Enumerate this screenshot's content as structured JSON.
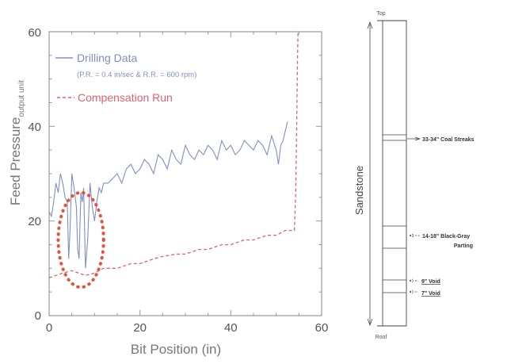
{
  "chart_data": [
    {
      "type": "line",
      "xlabel": "Bit Position (in)",
      "ylabel": "Feed Pressure",
      "ylabel_subscript": "output unit",
      "xlim": [
        0,
        60
      ],
      "ylim": [
        0,
        60
      ],
      "x_ticks": [
        "0",
        "20",
        "40",
        "60"
      ],
      "y_ticks": [
        "0",
        "20",
        "40",
        "60"
      ],
      "grid": false,
      "legend_position": "top-left",
      "series": [
        {
          "name": "Drilling Data",
          "legend_sublabel": "(P.R. = 0.4 in/sec & R.R. = 600 rpm)",
          "color": "#8090c4",
          "x": [
            0,
            0.5,
            1,
            1.5,
            2,
            2.5,
            3,
            3.5,
            4,
            4.3,
            4.6,
            5,
            5.5,
            6,
            6.3,
            6.6,
            7,
            7.3,
            7.6,
            8,
            8.5,
            9,
            9.5,
            10,
            10.5,
            11,
            11.5,
            12,
            13,
            14,
            15,
            16,
            17,
            18,
            19,
            20,
            21,
            22,
            23,
            24,
            25,
            26,
            27,
            28,
            29,
            30,
            31,
            32,
            33,
            34,
            35,
            36,
            37,
            38,
            39,
            40,
            41,
            42,
            43,
            44,
            45,
            46,
            47,
            48,
            49,
            50,
            50.5,
            51,
            51.5,
            52,
            52.5
          ],
          "y": [
            22,
            21,
            24,
            28,
            26,
            30,
            28,
            25,
            24,
            12,
            18,
            30,
            27,
            23,
            14,
            12,
            26,
            24,
            27,
            10,
            16,
            28,
            23,
            20,
            24,
            27,
            26,
            28,
            28,
            29,
            30,
            28,
            31,
            32,
            30,
            31,
            33,
            32,
            30,
            34,
            33,
            31,
            35,
            33,
            32,
            36,
            34,
            33,
            35,
            34,
            36,
            35,
            33,
            37,
            35,
            36,
            34,
            35,
            37,
            36,
            35,
            37,
            36,
            34,
            38,
            35,
            32,
            36,
            37,
            39,
            41
          ]
        },
        {
          "name": "Compensation Run",
          "color": "#e06070",
          "x": [
            0,
            3,
            5,
            8,
            10,
            12,
            15,
            18,
            20,
            23,
            25,
            28,
            30,
            33,
            35,
            38,
            40,
            43,
            45,
            48,
            50,
            52,
            53.5,
            54,
            54.3,
            54.5,
            54.7,
            54.8
          ],
          "y": [
            8,
            9,
            9.5,
            8.5,
            9,
            10,
            10,
            11,
            11,
            12,
            12.5,
            13,
            13,
            14,
            14,
            15,
            15,
            16,
            16,
            17,
            17,
            18,
            18,
            18,
            26,
            40,
            55,
            60
          ]
        }
      ],
      "annotations": [
        {
          "type": "ellipse",
          "color": "#e8503c",
          "cx": 7,
          "cy": 16,
          "rx": 5,
          "ry": 10
        }
      ]
    }
  ],
  "core_log": {
    "top_label": "Top",
    "bottom_label": "Roof",
    "formation_label": "Sandstone",
    "annotations": [
      {
        "text": "33-34\" Coal Streaks",
        "underline": false
      },
      {
        "text": "14-18\" Black-Gray",
        "text2": "Parting",
        "underline": false
      },
      {
        "text": "9\" Void",
        "underline": true
      },
      {
        "text": "7\" Void",
        "underline": true
      }
    ],
    "colors": {
      "void_text": "#8b3a4a",
      "line": "#444444"
    }
  }
}
